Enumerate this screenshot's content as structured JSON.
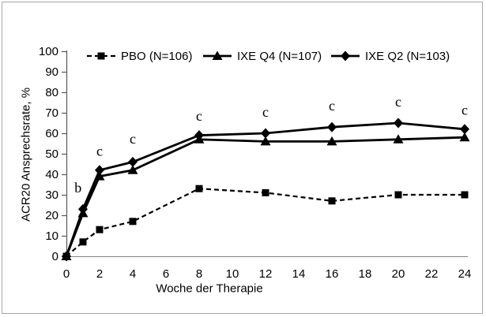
{
  "figure": {
    "background": "#ffffff",
    "frame_border_color": "#a6a6a6",
    "ink_color": "#000000",
    "axis_line_color": "#808080",
    "y_axis_line_color": "#595959"
  },
  "chart_data": {
    "type": "line",
    "title": "",
    "xlabel": "Woche der Therapie",
    "ylabel": "ACR20 Ansprechsrate, %",
    "xlim": [
      0,
      24
    ],
    "ylim": [
      0,
      100
    ],
    "xticks": [
      0,
      2,
      4,
      6,
      8,
      10,
      12,
      14,
      16,
      18,
      20,
      22,
      24
    ],
    "yticks": [
      0,
      10,
      20,
      30,
      40,
      50,
      60,
      70,
      80,
      90,
      100
    ],
    "grid": false,
    "legend_position": "top",
    "x": [
      0,
      1,
      2,
      4,
      8,
      12,
      16,
      20,
      24
    ],
    "series": [
      {
        "name": "PBO (N=106)",
        "marker": "square",
        "dash": true,
        "line_width": 2.2,
        "values": [
          0,
          7,
          13,
          17,
          33,
          31,
          27,
          30,
          30
        ]
      },
      {
        "name": "IXE Q4 (N=107)",
        "marker": "triangle",
        "dash": false,
        "line_width": 2.8,
        "values": [
          0,
          21,
          39,
          42,
          57,
          56,
          56,
          57,
          58
        ]
      },
      {
        "name": "IXE Q2 (N=103)",
        "marker": "diamond",
        "dash": false,
        "line_width": 2.8,
        "values": [
          0,
          23,
          42,
          46,
          59,
          60,
          63,
          65,
          62
        ]
      }
    ],
    "annotations": [
      {
        "text": "b",
        "week": 0.7,
        "value": 33
      },
      {
        "text": "c",
        "week": 2,
        "value": 51
      },
      {
        "text": "c",
        "week": 4,
        "value": 57
      },
      {
        "text": "c",
        "week": 8,
        "value": 68
      },
      {
        "text": "c",
        "week": 12,
        "value": 70
      },
      {
        "text": "c",
        "week": 16,
        "value": 73
      },
      {
        "text": "c",
        "week": 20,
        "value": 75
      },
      {
        "text": "c",
        "week": 24,
        "value": 71
      }
    ]
  }
}
